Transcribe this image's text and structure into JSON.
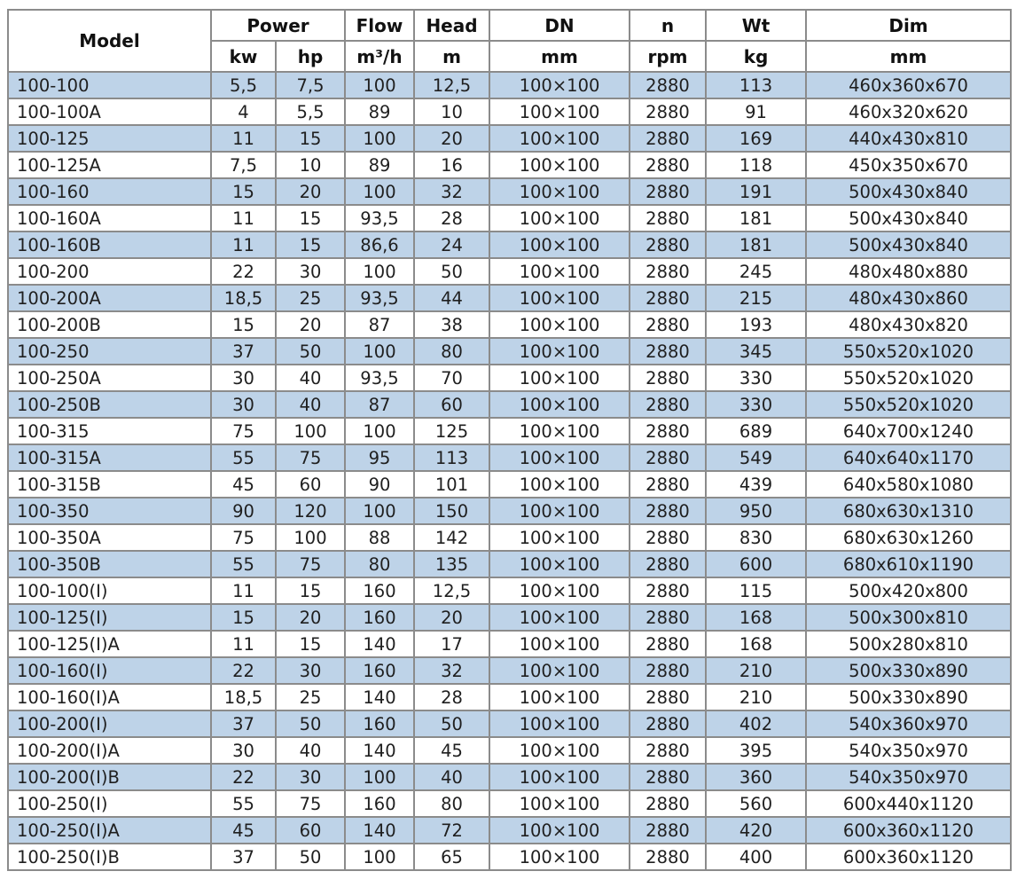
{
  "table": {
    "header": {
      "model": "Model",
      "power": "Power",
      "power_kw": "kw",
      "power_hp": "hp",
      "flow": "Flow",
      "flow_unit": "m³/h",
      "head": "Head",
      "head_unit": "m",
      "dn": "DN",
      "dn_unit": "mm",
      "n": "n",
      "n_unit": "rpm",
      "wt": "Wt",
      "wt_unit": "kg",
      "dim": "Dim",
      "dim_unit": "mm"
    },
    "rows": [
      [
        "100-100",
        "5,5",
        "7,5",
        "100",
        "12,5",
        "100×100",
        "2880",
        "113",
        "460x360x670"
      ],
      [
        "100-100A",
        "4",
        "5,5",
        "89",
        "10",
        "100×100",
        "2880",
        "91",
        "460x320x620"
      ],
      [
        "100-125",
        "11",
        "15",
        "100",
        "20",
        "100×100",
        "2880",
        "169",
        "440x430x810"
      ],
      [
        "100-125A",
        "7,5",
        "10",
        "89",
        "16",
        "100×100",
        "2880",
        "118",
        "450x350x670"
      ],
      [
        "100-160",
        "15",
        "20",
        "100",
        "32",
        "100×100",
        "2880",
        "191",
        "500x430x840"
      ],
      [
        "100-160A",
        "11",
        "15",
        "93,5",
        "28",
        "100×100",
        "2880",
        "181",
        "500x430x840"
      ],
      [
        "100-160B",
        "11",
        "15",
        "86,6",
        "24",
        "100×100",
        "2880",
        "181",
        "500x430x840"
      ],
      [
        "100-200",
        "22",
        "30",
        "100",
        "50",
        "100×100",
        "2880",
        "245",
        "480x480x880"
      ],
      [
        "100-200A",
        "18,5",
        "25",
        "93,5",
        "44",
        "100×100",
        "2880",
        "215",
        "480x430x860"
      ],
      [
        "100-200B",
        "15",
        "20",
        "87",
        "38",
        "100×100",
        "2880",
        "193",
        "480x430x820"
      ],
      [
        "100-250",
        "37",
        "50",
        "100",
        "80",
        "100×100",
        "2880",
        "345",
        "550x520x1020"
      ],
      [
        "100-250A",
        "30",
        "40",
        "93,5",
        "70",
        "100×100",
        "2880",
        "330",
        "550x520x1020"
      ],
      [
        "100-250B",
        "30",
        "40",
        "87",
        "60",
        "100×100",
        "2880",
        "330",
        "550x520x1020"
      ],
      [
        "100-315",
        "75",
        "100",
        "100",
        "125",
        "100×100",
        "2880",
        "689",
        "640x700x1240"
      ],
      [
        "100-315A",
        "55",
        "75",
        "95",
        "113",
        "100×100",
        "2880",
        "549",
        "640x640x1170"
      ],
      [
        "100-315B",
        "45",
        "60",
        "90",
        "101",
        "100×100",
        "2880",
        "439",
        "640x580x1080"
      ],
      [
        "100-350",
        "90",
        "120",
        "100",
        "150",
        "100×100",
        "2880",
        "950",
        "680x630x1310"
      ],
      [
        "100-350A",
        "75",
        "100",
        "88",
        "142",
        "100×100",
        "2880",
        "830",
        "680x630x1260"
      ],
      [
        "100-350B",
        "55",
        "75",
        "80",
        "135",
        "100×100",
        "2880",
        "600",
        "680x610x1190"
      ],
      [
        "100-100(I)",
        "11",
        "15",
        "160",
        "12,5",
        "100×100",
        "2880",
        "115",
        "500x420x800"
      ],
      [
        "100-125(I)",
        "15",
        "20",
        "160",
        "20",
        "100×100",
        "2880",
        "168",
        "500x300x810"
      ],
      [
        "100-125(I)A",
        "11",
        "15",
        "140",
        "17",
        "100×100",
        "2880",
        "168",
        "500x280x810"
      ],
      [
        "100-160(I)",
        "22",
        "30",
        "160",
        "32",
        "100×100",
        "2880",
        "210",
        "500x330x890"
      ],
      [
        "100-160(I)A",
        "18,5",
        "25",
        "140",
        "28",
        "100×100",
        "2880",
        "210",
        "500x330x890"
      ],
      [
        "100-200(I)",
        "37",
        "50",
        "160",
        "50",
        "100×100",
        "2880",
        "402",
        "540x360x970"
      ],
      [
        "100-200(I)A",
        "30",
        "40",
        "140",
        "45",
        "100×100",
        "2880",
        "395",
        "540x350x970"
      ],
      [
        "100-200(I)B",
        "22",
        "30",
        "100",
        "40",
        "100×100",
        "2880",
        "360",
        "540x350x970"
      ],
      [
        "100-250(I)",
        "55",
        "75",
        "160",
        "80",
        "100×100",
        "2880",
        "560",
        "600x440x1120"
      ],
      [
        "100-250(I)A",
        "45",
        "60",
        "140",
        "72",
        "100×100",
        "2880",
        "420",
        "600x360x1120"
      ],
      [
        "100-250(I)B",
        "37",
        "50",
        "100",
        "65",
        "100×100",
        "2880",
        "400",
        "600x360x1120"
      ]
    ]
  },
  "colors": {
    "row_alt_blue": "#bed3e8",
    "grid_gray": "#8b8b8b",
    "text": "#1f1f1f"
  }
}
